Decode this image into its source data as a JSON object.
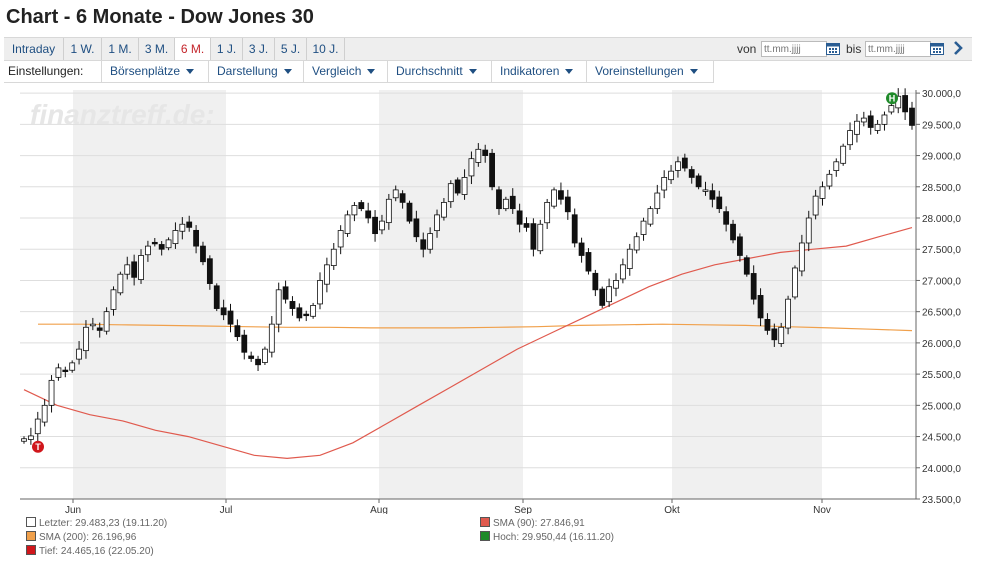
{
  "page_title": "Chart - 6 Monate - Dow Jones 30",
  "range_tabs": [
    {
      "label": "Intraday",
      "active": false
    },
    {
      "label": "1 W.",
      "active": false
    },
    {
      "label": "1 M.",
      "active": false
    },
    {
      "label": "3 M.",
      "active": false
    },
    {
      "label": "6 M.",
      "active": true
    },
    {
      "label": "1 J.",
      "active": false
    },
    {
      "label": "3 J.",
      "active": false
    },
    {
      "label": "5 J.",
      "active": false
    },
    {
      "label": "10 J.",
      "active": false
    }
  ],
  "date_range": {
    "from_label": "von",
    "from_placeholder": "tt.mm.jjjj",
    "to_label": "bis",
    "to_placeholder": "tt.mm.jjjj"
  },
  "settings": {
    "label": "Einstellungen:",
    "menus": [
      "Börsenplätze",
      "Darstellung",
      "Vergleich",
      "Durchschnitt",
      "Indikatoren",
      "Voreinstellungen"
    ]
  },
  "watermark": "finanztreff.de:",
  "colors": {
    "accent": "#1f4f82",
    "active_tab": "#c4252b",
    "sma90": "#e05a4e",
    "sma200": "#f0a04b",
    "high_marker": "#1f8a2a",
    "low_marker": "#d0161b",
    "band": "#f0f0f0"
  },
  "chart_data": {
    "type": "candlestick",
    "title": "",
    "x_tick_labels": [
      "Jun",
      "Jul",
      "Aug",
      "Sep",
      "Okt",
      "Nov"
    ],
    "y_tick_labels": [
      "30.000,0",
      "29.500,0",
      "29.000,0",
      "28.500,0",
      "28.000,0",
      "27.500,0",
      "27.000,0",
      "26.500,0",
      "26.000,0",
      "25.500,0",
      "25.000,0",
      "24.500,0",
      "24.000,0",
      "23.500,0"
    ],
    "ylim": [
      23500,
      30050
    ],
    "y_ticks": [
      30000,
      29500,
      29000,
      28500,
      28000,
      27500,
      27000,
      26500,
      26000,
      25500,
      25000,
      24500,
      24000,
      23500
    ],
    "candle_closes": [
      24465,
      24510,
      24780,
      25000,
      25400,
      25600,
      25550,
      25680,
      25900,
      26250,
      26300,
      26200,
      26500,
      26850,
      27100,
      27250,
      27050,
      27400,
      27550,
      27600,
      27500,
      27650,
      27800,
      27900,
      27850,
      27550,
      27300,
      26950,
      26550,
      26450,
      26300,
      26100,
      25850,
      25750,
      25650,
      25900,
      26300,
      26850,
      26700,
      26550,
      26400,
      26450,
      26600,
      27000,
      27250,
      27500,
      27800,
      28050,
      28200,
      28150,
      28000,
      27750,
      27950,
      28300,
      28450,
      28250,
      27950,
      27700,
      27500,
      27750,
      28050,
      28250,
      28550,
      28400,
      28650,
      28950,
      29100,
      29000,
      28500,
      28150,
      28300,
      28150,
      27900,
      27850,
      27500,
      27900,
      28250,
      28450,
      28300,
      28100,
      27600,
      27400,
      27150,
      26850,
      26600,
      26900,
      27000,
      27250,
      27500,
      27700,
      27950,
      28150,
      28400,
      28650,
      28750,
      28900,
      28800,
      28650,
      28500,
      28450,
      28300,
      28150,
      27900,
      27650,
      27400,
      27100,
      26700,
      26400,
      26200,
      26050,
      26250,
      26700,
      27200,
      27600,
      28000,
      28350,
      28500,
      28700,
      28900,
      29150,
      29400,
      29550,
      29600,
      29450,
      29500,
      29650,
      29800,
      29950,
      29700,
      29483
    ],
    "sma90": [
      25250,
      25000,
      24850,
      24750,
      24600,
      24500,
      24350,
      24200,
      24150,
      24200,
      24400,
      24700,
      25000,
      25300,
      25600,
      25900,
      26150,
      26400,
      26650,
      26900,
      27100,
      27250,
      27350,
      27450,
      27500,
      27550,
      27700,
      27847
    ],
    "sma200": [
      26300,
      26300,
      26290,
      26280,
      26270,
      26260,
      26250,
      26250,
      26240,
      26240,
      26240,
      26250,
      26260,
      26280,
      26290,
      26300,
      26290,
      26280,
      26260,
      26240,
      26220,
      26197
    ],
    "markers": [
      {
        "label": "T",
        "type": "low",
        "value": 24465.16
      },
      {
        "label": "H",
        "type": "high",
        "value": 29950.44
      }
    ]
  },
  "legend": [
    {
      "text": "Letzter: 29.483,23 (19.11.20)",
      "color": "#ffffff"
    },
    {
      "text": "SMA (90): 27.846,91",
      "color": "#e05a4e"
    },
    {
      "text": "SMA (200): 26.196,96",
      "color": "#f0a04b"
    },
    {
      "text": "Hoch: 29.950,44 (16.11.20)",
      "color": "#1f8a2a"
    },
    {
      "text": "Tief: 24.465,16 (22.05.20)",
      "color": "#d0161b"
    }
  ]
}
